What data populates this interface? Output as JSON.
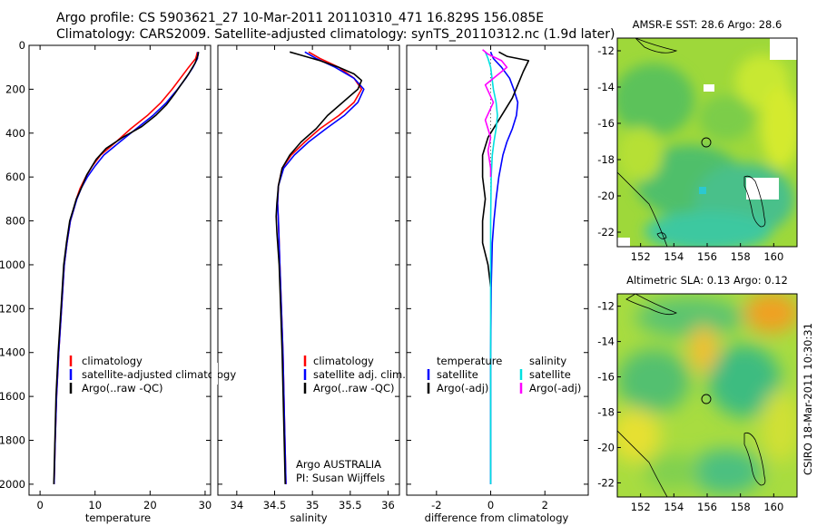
{
  "header": {
    "line1": "Argo profile: CS 5903621_27 10-Mar-2011 20110310_471 16.829S 156.085E",
    "line2": "Climatology: CARS2009. Satellite-adjusted climatology: synTS_20110312.nc (1.9d later)"
  },
  "side_label": "CSIRO 18-Mar-2011 10:30:31",
  "colors": {
    "climatology": "#ff0000",
    "satellite": "#0000ff",
    "argo": "#000000",
    "sat_salinity": "#00e0e0",
    "argo_adj_salinity": "#ff00ff"
  },
  "chart_data": [
    {
      "type": "line",
      "id": "temperature",
      "xlabel": "temperature",
      "xlim": [
        -2,
        31
      ],
      "xticks": [
        0,
        10,
        20,
        30
      ],
      "ylim": [
        2050,
        0
      ],
      "yticks": [
        0,
        200,
        400,
        600,
        800,
        1000,
        1200,
        1400,
        1600,
        1800,
        2000
      ],
      "legend": [
        "climatology",
        "satellite-adjusted climatology",
        "Argo(..raw -QC)"
      ],
      "series": [
        {
          "name": "climatology",
          "color": "#ff0000",
          "x": [
            28.6,
            28.3,
            27.0,
            25.5,
            24.0,
            22.0,
            19.5,
            16.5,
            13.8,
            11.0,
            9.5,
            8.3,
            7.3,
            6.6,
            6.1,
            5.5,
            4.9,
            4.4,
            3.9,
            3.4,
            3.0,
            2.75,
            2.55
          ],
          "y": [
            30,
            60,
            100,
            150,
            200,
            260,
            320,
            380,
            440,
            500,
            550,
            600,
            650,
            700,
            750,
            800,
            900,
            1000,
            1200,
            1400,
            1600,
            1800,
            2000
          ]
        },
        {
          "name": "satellite-adjusted climatology",
          "color": "#0000ff",
          "x": [
            28.7,
            28.6,
            27.8,
            26.5,
            25.0,
            23.0,
            20.5,
            17.5,
            14.5,
            11.6,
            10.0,
            8.6,
            7.5,
            6.7,
            6.1,
            5.5,
            4.9,
            4.4,
            3.9,
            3.4,
            3.0,
            2.75,
            2.55
          ],
          "y": [
            30,
            60,
            100,
            150,
            200,
            260,
            320,
            380,
            440,
            500,
            550,
            600,
            650,
            700,
            750,
            800,
            900,
            1000,
            1200,
            1400,
            1600,
            1800,
            2000
          ]
        },
        {
          "name": "Argo(..raw -QC)",
          "color": "#000000",
          "x": [
            28.8,
            28.7,
            28.2,
            27.0,
            25.6,
            24.5,
            23.0,
            21.0,
            18.5,
            15.0,
            12.0,
            10.2,
            8.5,
            7.5,
            6.6,
            6.0,
            5.4,
            4.8,
            4.3,
            3.8,
            3.3,
            2.9,
            2.7,
            2.5
          ],
          "y": [
            30,
            45,
            80,
            130,
            180,
            220,
            270,
            320,
            370,
            420,
            470,
            520,
            590,
            650,
            700,
            750,
            800,
            900,
            1000,
            1200,
            1400,
            1600,
            1800,
            2000
          ]
        }
      ]
    },
    {
      "type": "line",
      "id": "salinity",
      "xlabel": "salinity",
      "xlim": [
        33.75,
        36.15
      ],
      "xticks": [
        34,
        34.5,
        35,
        35.5,
        36
      ],
      "ylim": [
        2050,
        0
      ],
      "legend": [
        "climatology",
        "satellite adj. clim.",
        "Argo(..raw -QC)"
      ],
      "annotations": [
        "Argo AUSTRALIA",
        "PI: Susan Wijffels"
      ],
      "series": [
        {
          "name": "climatology",
          "color": "#ff0000",
          "x": [
            34.95,
            35.1,
            35.35,
            35.55,
            35.65,
            35.55,
            35.35,
            35.1,
            34.9,
            34.72,
            34.6,
            34.55,
            34.54,
            34.55,
            34.57,
            34.59,
            34.61,
            34.63,
            34.65
          ],
          "y": [
            30,
            60,
            100,
            150,
            200,
            260,
            320,
            380,
            440,
            500,
            560,
            640,
            720,
            800,
            1000,
            1200,
            1400,
            1700,
            2000
          ]
        },
        {
          "name": "satellite adj. clim.",
          "color": "#0000ff",
          "x": [
            34.9,
            35.05,
            35.3,
            35.55,
            35.68,
            35.6,
            35.42,
            35.18,
            34.95,
            34.76,
            34.62,
            34.55,
            34.54,
            34.55,
            34.57,
            34.59,
            34.61,
            34.63,
            34.65
          ],
          "y": [
            30,
            60,
            100,
            150,
            200,
            260,
            320,
            380,
            440,
            500,
            560,
            640,
            720,
            800,
            1000,
            1200,
            1400,
            1700,
            2000
          ]
        },
        {
          "name": "Argo(..raw -QC)",
          "color": "#000000",
          "x": [
            34.7,
            34.85,
            35.1,
            35.35,
            35.55,
            35.65,
            35.6,
            35.4,
            35.2,
            35.05,
            34.85,
            34.7,
            34.6,
            34.55,
            34.53,
            34.52,
            34.53,
            34.56,
            34.58,
            34.6,
            34.62,
            34.64
          ],
          "y": [
            30,
            45,
            70,
            100,
            130,
            160,
            200,
            260,
            320,
            380,
            440,
            500,
            560,
            640,
            720,
            780,
            850,
            1000,
            1200,
            1400,
            1700,
            2000
          ]
        }
      ]
    },
    {
      "type": "line",
      "id": "difference",
      "xlabel": "difference from climatology",
      "xlim": [
        -3.1,
        3.6
      ],
      "xticks": [
        -2,
        0,
        2
      ],
      "ylim": [
        2050,
        0
      ],
      "legend_groups": [
        {
          "heading": "temperature",
          "entries": [
            "satellite",
            "Argo(-adj)"
          ]
        },
        {
          "heading": "salinity",
          "entries": [
            "satellite",
            "Argo(-adj)"
          ]
        }
      ],
      "series": [
        {
          "name": "temperature satellite",
          "color": "#0000ff",
          "x": [
            0.0,
            0.1,
            0.4,
            0.7,
            0.85,
            1.0,
            0.95,
            0.8,
            0.6,
            0.45,
            0.3,
            0.2,
            0.12,
            0.06,
            0.02,
            0.0,
            0.0
          ],
          "y": [
            30,
            60,
            100,
            150,
            200,
            260,
            320,
            380,
            440,
            500,
            600,
            700,
            800,
            900,
            1100,
            1400,
            2000
          ]
        },
        {
          "name": "temperature Argo(-adj)",
          "color": "#000000",
          "x": [
            0.3,
            0.6,
            1.4,
            1.2,
            1.0,
            0.8,
            0.5,
            0.2,
            -0.1,
            -0.3,
            -0.3,
            -0.2,
            -0.3,
            -0.3,
            -0.1,
            0.0
          ],
          "y": [
            30,
            50,
            70,
            120,
            180,
            240,
            300,
            360,
            420,
            500,
            600,
            700,
            800,
            900,
            1000,
            1100
          ]
        },
        {
          "name": "salinity satellite",
          "color": "#00e0e0",
          "x": [
            -0.2,
            -0.1,
            0.0,
            0.05,
            0.1,
            0.2,
            0.25,
            0.2,
            0.12,
            0.06,
            0.02,
            0.0,
            0.0
          ],
          "y": [
            30,
            60,
            100,
            150,
            200,
            260,
            320,
            380,
            440,
            500,
            600,
            800,
            2000
          ]
        },
        {
          "name": "salinity Argo(-adj)",
          "color": "#ff00ff",
          "x": [
            -0.3,
            -0.1,
            0.4,
            0.6,
            -0.2,
            0.1,
            -0.2,
            0.0,
            -0.1,
            0.0,
            0.0
          ],
          "y": [
            20,
            40,
            70,
            100,
            180,
            260,
            340,
            420,
            480,
            560,
            600
          ]
        }
      ]
    }
  ],
  "maps": [
    {
      "id": "sst",
      "title": "AMSR-E SST: 28.6 Argo: 28.6",
      "xticks": [
        152,
        154,
        156,
        158,
        160
      ],
      "yticks": [
        -12,
        -14,
        -16,
        -18,
        -20,
        -22
      ]
    },
    {
      "id": "sla",
      "title": "Altimetric SLA: 0.13 Argo: 0.12",
      "xticks": [
        152,
        154,
        156,
        158,
        160
      ],
      "yticks": [
        -12,
        -14,
        -16,
        -18,
        -20,
        -22
      ]
    }
  ]
}
